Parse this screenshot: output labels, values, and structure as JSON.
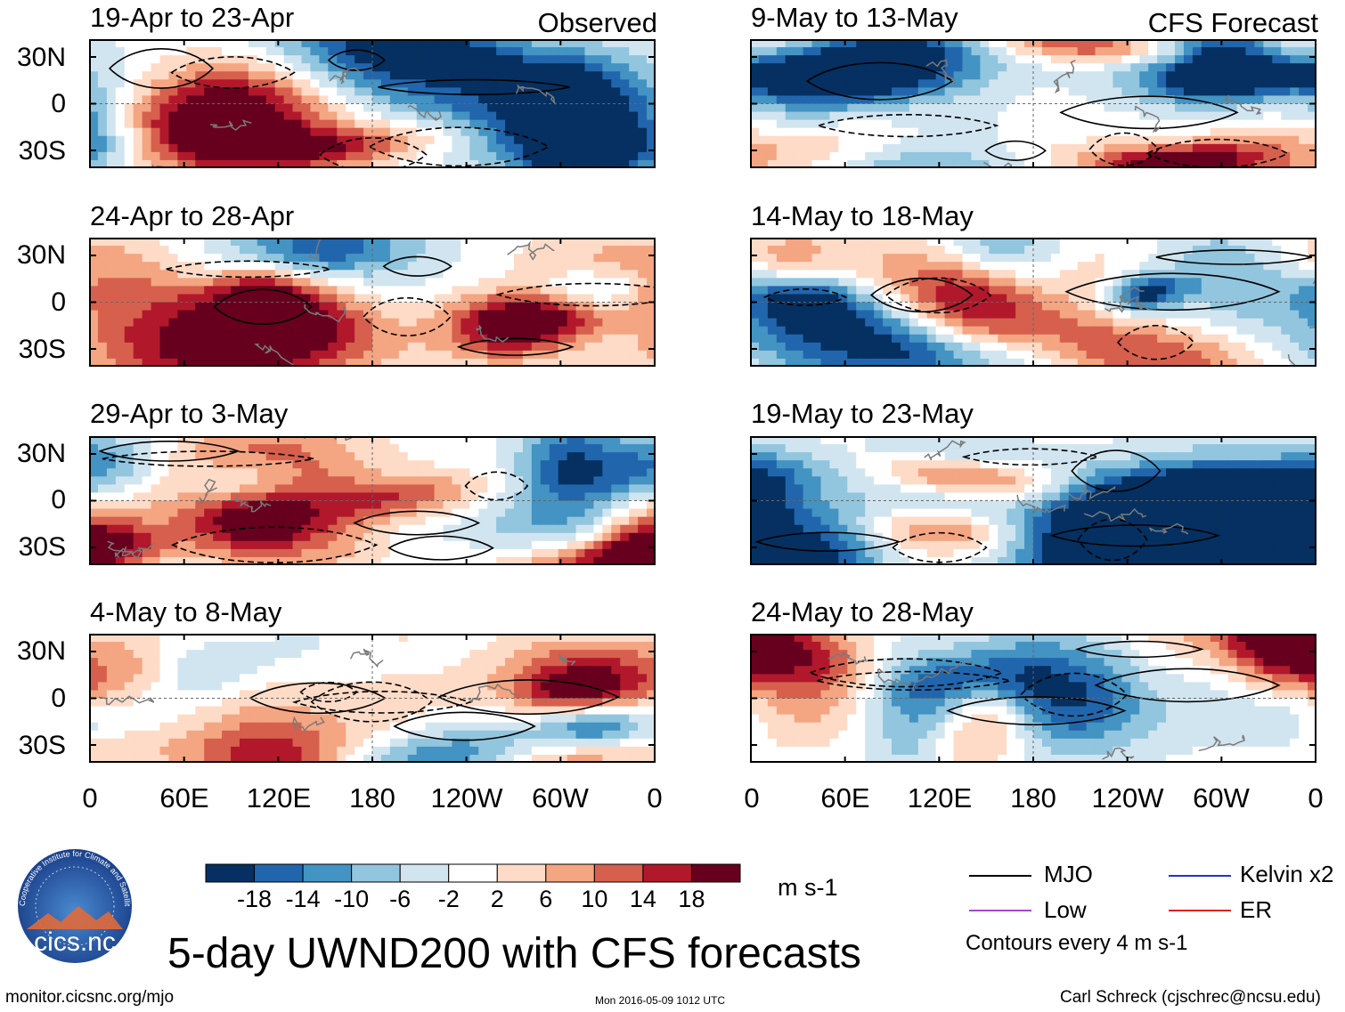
{
  "chart_data": {
    "type": "heatmap",
    "title": "5-day UWND200 with CFS forecasts",
    "variable": "200-hPa zonal wind anomaly",
    "units": "m s-1",
    "y_ticks": [
      "30N",
      "0",
      "30S"
    ],
    "x_ticks": [
      "0",
      "60E",
      "120E",
      "180",
      "120W",
      "60W",
      "0"
    ],
    "columns": [
      {
        "header": "Observed",
        "panels": [
          {
            "label": "19-Apr to 23-Apr"
          },
          {
            "label": "24-Apr to 28-Apr"
          },
          {
            "label": "29-Apr to 3-May"
          },
          {
            "label": "4-May to 8-May"
          }
        ]
      },
      {
        "header": "CFS Forecast",
        "panels": [
          {
            "label": "9-May to 13-May"
          },
          {
            "label": "14-May to 18-May"
          },
          {
            "label": "19-May to 23-May"
          },
          {
            "label": "24-May to 28-May"
          }
        ]
      }
    ],
    "colorbar": {
      "boundaries": [
        "-18",
        "-14",
        "-10",
        "-6",
        "-2",
        "2",
        "6",
        "10",
        "14",
        "18"
      ],
      "colors": [
        "#053061",
        "#2166ac",
        "#4393c3",
        "#92c5de",
        "#d1e5f0",
        "#ffffff",
        "#fddbc7",
        "#f4a582",
        "#d6604d",
        "#b2182b",
        "#67001f"
      ]
    },
    "legend": [
      {
        "label": "MJO",
        "color": "#000000"
      },
      {
        "label": "Kelvin x2",
        "color": "#2233cc"
      },
      {
        "label": "Low",
        "color": "#aa44cc"
      },
      {
        "label": "ER",
        "color": "#dd2222"
      }
    ],
    "contour_note": "Contours every 4 m s-1"
  },
  "logo": {
    "text": "cics.nc",
    "ring_text": "Cooperative Institute for Climate and Satellites"
  },
  "footer": {
    "url": "monitor.cicsnc.org/mjo",
    "timestamp": "Mon 2016-05-09 1012 UTC",
    "author": "Carl Schreck (cjschrec@ncsu.edu)"
  }
}
